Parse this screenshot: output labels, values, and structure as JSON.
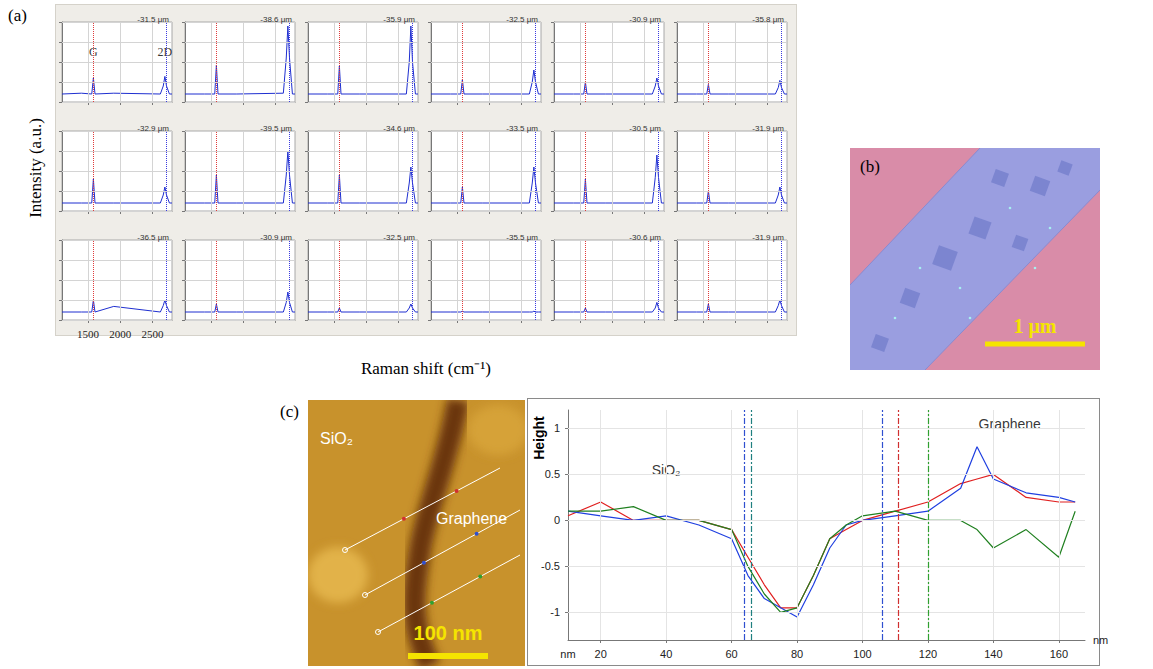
{
  "panel_a": {
    "letter": "(a)",
    "y_label": "Intensity (a.u.)",
    "x_label": "Raman shift (cm⁻¹)",
    "peak_lines": [
      {
        "x": 1590,
        "color": "#e03c3c"
      },
      {
        "x": 2705,
        "color": "#3c3ce0"
      }
    ]
  },
  "panel_b": {
    "letter": "(b)",
    "scale_bar": "1 μm"
  },
  "panel_c": {
    "letter": "(c)",
    "image_labels": {
      "left": "SiO₂",
      "right": "Graphene"
    },
    "scale_bar": "100 nm"
  },
  "chart_data": [
    {
      "type": "line",
      "title": "-31.5 μm",
      "color": "#1f2fd0",
      "x": [
        1100,
        1400,
        1560,
        1585,
        1610,
        1900,
        2620,
        2665,
        2690,
        2715,
        2760,
        2800
      ],
      "values": [
        0.1,
        0.11,
        0.1,
        0.3,
        0.1,
        0.11,
        0.1,
        0.2,
        0.32,
        0.2,
        0.1,
        0.1
      ],
      "xlim": [
        1100,
        2800
      ],
      "ylim": [
        0,
        1
      ],
      "xticks": [
        1500,
        2000,
        2500
      ],
      "yticks": [
        0,
        0.25,
        0.5,
        0.75,
        1
      ],
      "grid": true,
      "tick_labels": false,
      "annotations": [
        {
          "text": "G",
          "x": 1585,
          "y": 0.62
        },
        {
          "text": "2D",
          "x": 2690,
          "y": 0.62
        }
      ]
    },
    {
      "type": "line",
      "title": "-38.6 μm",
      "color": "#1f2fd0",
      "x": [
        1100,
        1400,
        1560,
        1585,
        1610,
        1900,
        2620,
        2665,
        2690,
        2715,
        2760,
        2800
      ],
      "values": [
        0.1,
        0.1,
        0.1,
        0.46,
        0.1,
        0.1,
        0.11,
        0.55,
        0.95,
        0.55,
        0.1,
        0.1
      ],
      "xlim": [
        1100,
        2800
      ],
      "ylim": [
        0,
        1
      ],
      "xticks": [
        1500,
        2000,
        2500
      ],
      "yticks": [
        0,
        0.25,
        0.5,
        0.75,
        1
      ],
      "grid": true,
      "tick_labels": false
    },
    {
      "type": "line",
      "title": "-35.9 μm",
      "color": "#1f2fd0",
      "x": [
        1100,
        1400,
        1560,
        1585,
        1610,
        1900,
        2620,
        2665,
        2690,
        2715,
        2760,
        2800
      ],
      "values": [
        0.1,
        0.1,
        0.1,
        0.45,
        0.1,
        0.1,
        0.1,
        0.5,
        0.95,
        0.5,
        0.1,
        0.1
      ],
      "xlim": [
        1100,
        2800
      ],
      "ylim": [
        0,
        1
      ],
      "xticks": [
        1500,
        2000,
        2500
      ],
      "yticks": [
        0,
        0.25,
        0.5,
        0.75,
        1
      ],
      "grid": true,
      "tick_labels": false
    },
    {
      "type": "line",
      "title": "-32.5 μm",
      "color": "#1f2fd0",
      "x": [
        1100,
        1400,
        1560,
        1585,
        1610,
        1900,
        2620,
        2665,
        2690,
        2715,
        2760,
        2800
      ],
      "values": [
        0.1,
        0.1,
        0.1,
        0.28,
        0.1,
        0.1,
        0.1,
        0.25,
        0.4,
        0.25,
        0.1,
        0.1
      ],
      "xlim": [
        1100,
        2800
      ],
      "ylim": [
        0,
        1
      ],
      "xticks": [
        1500,
        2000,
        2500
      ],
      "yticks": [
        0,
        0.25,
        0.5,
        0.75,
        1
      ],
      "grid": true,
      "tick_labels": false
    },
    {
      "type": "line",
      "title": "-30.9 μm",
      "color": "#1f2fd0",
      "x": [
        1100,
        1400,
        1560,
        1585,
        1610,
        1900,
        2620,
        2665,
        2690,
        2715,
        2760,
        2800
      ],
      "values": [
        0.1,
        0.1,
        0.1,
        0.25,
        0.1,
        0.1,
        0.1,
        0.2,
        0.3,
        0.2,
        0.1,
        0.1
      ],
      "xlim": [
        1100,
        2800
      ],
      "ylim": [
        0,
        1
      ],
      "xticks": [
        1500,
        2000,
        2500
      ],
      "yticks": [
        0,
        0.25,
        0.5,
        0.75,
        1
      ],
      "grid": true,
      "tick_labels": false
    },
    {
      "type": "line",
      "title": "-35.8 μm",
      "color": "#1f2fd0",
      "x": [
        1100,
        1400,
        1560,
        1585,
        1610,
        1900,
        2620,
        2665,
        2690,
        2715,
        2760,
        2800
      ],
      "values": [
        0.1,
        0.1,
        0.1,
        0.22,
        0.1,
        0.1,
        0.1,
        0.18,
        0.27,
        0.18,
        0.1,
        0.1
      ],
      "xlim": [
        1100,
        2800
      ],
      "ylim": [
        0,
        1
      ],
      "xticks": [
        1500,
        2000,
        2500
      ],
      "yticks": [
        0,
        0.25,
        0.5,
        0.75,
        1
      ],
      "grid": true,
      "tick_labels": false
    },
    {
      "type": "line",
      "title": "-32.9 μm",
      "color": "#1f2fd0",
      "x": [
        1100,
        1400,
        1560,
        1585,
        1610,
        1900,
        2620,
        2665,
        2690,
        2715,
        2760,
        2800
      ],
      "values": [
        0.1,
        0.1,
        0.1,
        0.4,
        0.1,
        0.1,
        0.1,
        0.2,
        0.3,
        0.2,
        0.1,
        0.1
      ],
      "xlim": [
        1100,
        2800
      ],
      "ylim": [
        0,
        1
      ],
      "xticks": [
        1500,
        2000,
        2500
      ],
      "yticks": [
        0,
        0.25,
        0.5,
        0.75,
        1
      ],
      "grid": true,
      "tick_labels": false
    },
    {
      "type": "line",
      "title": "-39.5 μm",
      "color": "#1f2fd0",
      "x": [
        1100,
        1400,
        1560,
        1585,
        1610,
        1900,
        2620,
        2665,
        2690,
        2715,
        2760,
        2800
      ],
      "values": [
        0.1,
        0.1,
        0.1,
        0.45,
        0.1,
        0.1,
        0.1,
        0.45,
        0.75,
        0.45,
        0.1,
        0.1
      ],
      "xlim": [
        1100,
        2800
      ],
      "ylim": [
        0,
        1
      ],
      "xticks": [
        1500,
        2000,
        2500
      ],
      "yticks": [
        0,
        0.25,
        0.5,
        0.75,
        1
      ],
      "grid": true,
      "tick_labels": false
    },
    {
      "type": "line",
      "title": "-34.6 μm",
      "color": "#1f2fd0",
      "x": [
        1100,
        1400,
        1560,
        1585,
        1610,
        1900,
        2620,
        2665,
        2690,
        2715,
        2760,
        2800
      ],
      "values": [
        0.1,
        0.1,
        0.1,
        0.45,
        0.1,
        0.1,
        0.1,
        0.35,
        0.55,
        0.35,
        0.1,
        0.1
      ],
      "xlim": [
        1100,
        2800
      ],
      "ylim": [
        0,
        1
      ],
      "xticks": [
        1500,
        2000,
        2500
      ],
      "yticks": [
        0,
        0.25,
        0.5,
        0.75,
        1
      ],
      "grid": true,
      "tick_labels": false
    },
    {
      "type": "line",
      "title": "-33.5 μm",
      "color": "#1f2fd0",
      "x": [
        1100,
        1400,
        1560,
        1585,
        1610,
        1900,
        2620,
        2665,
        2690,
        2715,
        2760,
        2800
      ],
      "values": [
        0.1,
        0.1,
        0.1,
        0.3,
        0.1,
        0.1,
        0.1,
        0.35,
        0.55,
        0.35,
        0.1,
        0.1
      ],
      "xlim": [
        1100,
        2800
      ],
      "ylim": [
        0,
        1
      ],
      "xticks": [
        1500,
        2000,
        2500
      ],
      "yticks": [
        0,
        0.25,
        0.5,
        0.75,
        1
      ],
      "grid": true,
      "tick_labels": false
    },
    {
      "type": "line",
      "title": "-30.5 μm",
      "color": "#1f2fd0",
      "x": [
        1100,
        1400,
        1560,
        1585,
        1610,
        1900,
        2620,
        2665,
        2690,
        2715,
        2760,
        2800
      ],
      "values": [
        0.1,
        0.1,
        0.1,
        0.4,
        0.1,
        0.1,
        0.1,
        0.42,
        0.7,
        0.42,
        0.1,
        0.1
      ],
      "xlim": [
        1100,
        2800
      ],
      "ylim": [
        0,
        1
      ],
      "xticks": [
        1500,
        2000,
        2500
      ],
      "yticks": [
        0,
        0.25,
        0.5,
        0.75,
        1
      ],
      "grid": true,
      "tick_labels": false
    },
    {
      "type": "line",
      "title": "-31.9 μm",
      "color": "#1f2fd0",
      "x": [
        1100,
        1400,
        1560,
        1585,
        1610,
        1900,
        2620,
        2665,
        2690,
        2715,
        2760,
        2800
      ],
      "values": [
        0.1,
        0.1,
        0.1,
        0.25,
        0.1,
        0.1,
        0.1,
        0.2,
        0.3,
        0.2,
        0.1,
        0.1
      ],
      "xlim": [
        1100,
        2800
      ],
      "ylim": [
        0,
        1
      ],
      "xticks": [
        1500,
        2000,
        2500
      ],
      "yticks": [
        0,
        0.25,
        0.5,
        0.75,
        1
      ],
      "grid": true,
      "tick_labels": false
    },
    {
      "type": "line",
      "title": "-36.5 μm",
      "color": "#1f2fd0",
      "x": [
        1100,
        1400,
        1560,
        1585,
        1610,
        1900,
        2620,
        2665,
        2690,
        2715,
        2760,
        2800
      ],
      "values": [
        0.1,
        0.1,
        0.1,
        0.25,
        0.1,
        0.17,
        0.1,
        0.18,
        0.25,
        0.18,
        0.1,
        0.1
      ],
      "xlim": [
        1100,
        2800
      ],
      "ylim": [
        0,
        1
      ],
      "xticks": [
        1500,
        2000,
        2500
      ],
      "yticks": [
        0,
        0.25,
        0.5,
        0.75,
        1
      ],
      "grid": true,
      "tick_labels": "x"
    },
    {
      "type": "line",
      "title": "-30.9 μm",
      "color": "#1f2fd0",
      "x": [
        1100,
        1400,
        1560,
        1585,
        1610,
        1900,
        2620,
        2665,
        2690,
        2715,
        2760,
        2800
      ],
      "values": [
        0.1,
        0.1,
        0.1,
        0.2,
        0.1,
        0.1,
        0.1,
        0.22,
        0.35,
        0.22,
        0.1,
        0.1
      ],
      "xlim": [
        1100,
        2800
      ],
      "ylim": [
        0,
        1
      ],
      "xticks": [
        1500,
        2000,
        2500
      ],
      "yticks": [
        0,
        0.25,
        0.5,
        0.75,
        1
      ],
      "grid": true,
      "tick_labels": false
    },
    {
      "type": "line",
      "title": "-32.5 μm",
      "color": "#1f2fd0",
      "x": [
        1100,
        1400,
        1560,
        1585,
        1610,
        1900,
        2620,
        2665,
        2690,
        2715,
        2760,
        2800
      ],
      "values": [
        0.1,
        0.1,
        0.1,
        0.15,
        0.1,
        0.1,
        0.1,
        0.15,
        0.2,
        0.15,
        0.1,
        0.1
      ],
      "xlim": [
        1100,
        2800
      ],
      "ylim": [
        0,
        1
      ],
      "xticks": [
        1500,
        2000,
        2500
      ],
      "yticks": [
        0,
        0.25,
        0.5,
        0.75,
        1
      ],
      "grid": true,
      "tick_labels": false
    },
    {
      "type": "line",
      "title": "-35.5 μm",
      "color": "#1f2fd0",
      "x": [
        1100,
        1400,
        1560,
        1585,
        1610,
        1900,
        2620,
        2665,
        2690,
        2715,
        2760,
        2800
      ],
      "values": [
        0.1,
        0.1,
        0.1,
        0.11,
        0.1,
        0.1,
        0.1,
        0.1,
        0.11,
        0.1,
        0.1,
        0.1
      ],
      "xlim": [
        1100,
        2800
      ],
      "ylim": [
        0,
        1
      ],
      "xticks": [
        1500,
        2000,
        2500
      ],
      "yticks": [
        0,
        0.25,
        0.5,
        0.75,
        1
      ],
      "grid": true,
      "tick_labels": false
    },
    {
      "type": "line",
      "title": "-30.6 μm",
      "color": "#1f2fd0",
      "x": [
        1100,
        1400,
        1560,
        1585,
        1610,
        1900,
        2620,
        2665,
        2690,
        2715,
        2760,
        2800
      ],
      "values": [
        0.1,
        0.1,
        0.1,
        0.15,
        0.1,
        0.1,
        0.1,
        0.15,
        0.22,
        0.15,
        0.1,
        0.1
      ],
      "xlim": [
        1100,
        2800
      ],
      "ylim": [
        0,
        1
      ],
      "xticks": [
        1500,
        2000,
        2500
      ],
      "yticks": [
        0,
        0.25,
        0.5,
        0.75,
        1
      ],
      "grid": true,
      "tick_labels": false
    },
    {
      "type": "line",
      "title": "-31.9 μm",
      "color": "#1f2fd0",
      "x": [
        1100,
        1400,
        1560,
        1585,
        1610,
        1900,
        2620,
        2665,
        2690,
        2715,
        2760,
        2800
      ],
      "values": [
        0.1,
        0.1,
        0.1,
        0.2,
        0.1,
        0.1,
        0.1,
        0.18,
        0.25,
        0.18,
        0.1,
        0.1
      ],
      "xlim": [
        1100,
        2800
      ],
      "ylim": [
        0,
        1
      ],
      "xticks": [
        1500,
        2000,
        2500
      ],
      "yticks": [
        0,
        0.25,
        0.5,
        0.75,
        1
      ],
      "grid": true,
      "tick_labels": false
    },
    {
      "type": "line",
      "y_label": "Height",
      "y_unit": "nm",
      "x_label": "nm",
      "xlim": [
        10,
        168
      ],
      "xticks": [
        20,
        40,
        60,
        80,
        100,
        120,
        140,
        160
      ],
      "ylim": [
        -1.3,
        1.2
      ],
      "yticks": [
        -1,
        -0.5,
        0,
        0.5,
        1
      ],
      "grid": true,
      "x": [
        10,
        20,
        30,
        40,
        50,
        60,
        65,
        70,
        75,
        80,
        85,
        90,
        95,
        100,
        110,
        120,
        130,
        135,
        140,
        150,
        160,
        165
      ],
      "series": [
        {
          "color": "#e02020",
          "values": [
            0.05,
            0.2,
            0.0,
            0.0,
            0.0,
            -0.1,
            -0.4,
            -0.7,
            -0.95,
            -0.95,
            -0.6,
            -0.2,
            -0.1,
            0.0,
            0.1,
            0.2,
            0.4,
            0.45,
            0.5,
            0.25,
            0.2,
            0.2
          ]
        },
        {
          "color": "#2040e0",
          "values": [
            0.1,
            0.05,
            0.0,
            0.05,
            -0.05,
            -0.2,
            -0.6,
            -0.85,
            -0.95,
            -1.05,
            -0.7,
            -0.3,
            -0.05,
            0.0,
            0.05,
            0.1,
            0.35,
            0.8,
            0.45,
            0.3,
            0.25,
            0.2
          ]
        },
        {
          "color": "#208020",
          "values": [
            0.1,
            0.1,
            0.15,
            0.0,
            0.0,
            -0.1,
            -0.5,
            -0.8,
            -1.0,
            -0.95,
            -0.6,
            -0.2,
            -0.05,
            0.05,
            0.1,
            0.0,
            0.0,
            -0.1,
            -0.3,
            -0.1,
            -0.4,
            0.1
          ]
        }
      ],
      "vlines": [
        {
          "x": 64,
          "color": "#3050d0"
        },
        {
          "x": 66,
          "color": "#208080"
        },
        {
          "x": 106,
          "color": "#3050d0"
        },
        {
          "x": 111,
          "color": "#d03030"
        },
        {
          "x": 120,
          "color": "#30a030"
        }
      ],
      "annotations": [
        {
          "text": "SiO₂",
          "x": 40,
          "y": 0.55
        },
        {
          "text": "Graphene",
          "x": 145,
          "y": 1.05
        }
      ]
    }
  ]
}
